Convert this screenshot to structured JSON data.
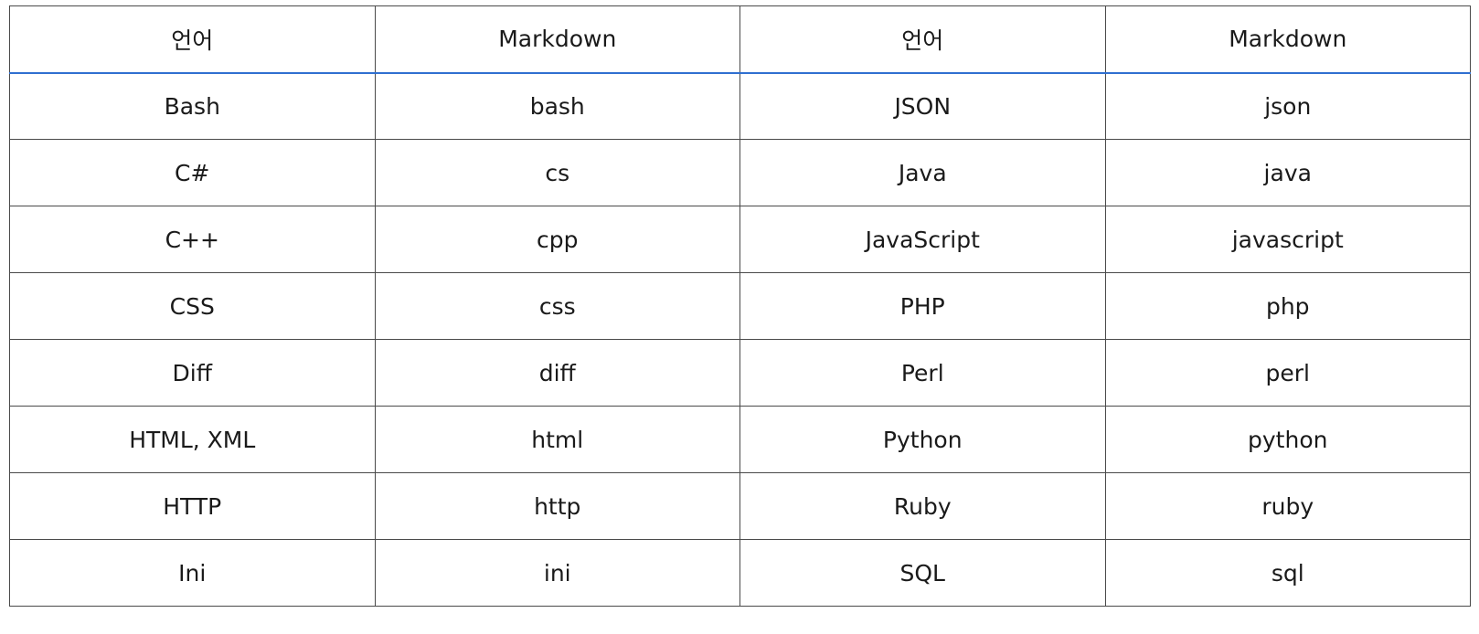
{
  "table": {
    "headers": [
      "언어",
      "Markdown",
      "언어",
      "Markdown"
    ],
    "rows": [
      [
        "Bash",
        "bash",
        "JSON",
        "json"
      ],
      [
        "C#",
        "cs",
        "Java",
        "java"
      ],
      [
        "C++",
        "cpp",
        "JavaScript",
        "javascript"
      ],
      [
        "CSS",
        "css",
        "PHP",
        "php"
      ],
      [
        "Diff",
        "diff",
        "Perl",
        "perl"
      ],
      [
        "HTML, XML",
        "html",
        "Python",
        "python"
      ],
      [
        "HTTP",
        "http",
        "Ruby",
        "ruby"
      ],
      [
        "Ini",
        "ini",
        "SQL",
        "sql"
      ]
    ]
  },
  "colors": {
    "border": "#4a4a4a",
    "header_underline": "#2f6fd0",
    "text": "#1a1a1a"
  }
}
